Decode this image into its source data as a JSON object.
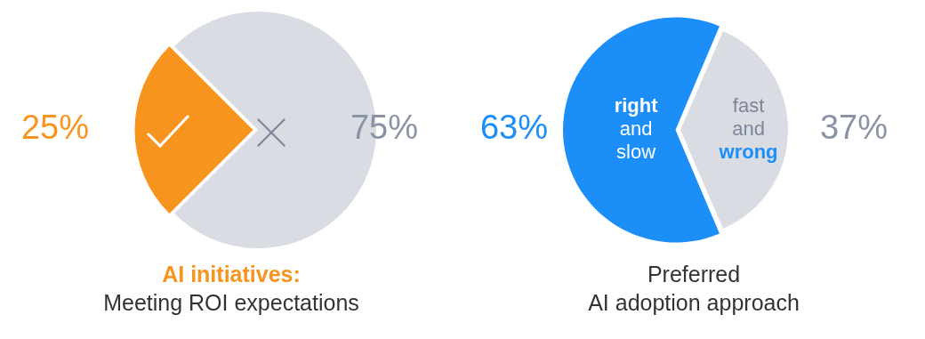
{
  "chart_data": [
    {
      "type": "pie",
      "categories": [
        null,
        null
      ],
      "values": [
        25,
        75
      ],
      "colors": [
        "#f7941d",
        "#d9dce3"
      ],
      "value_labels": [
        "25%",
        "75%"
      ],
      "legend": false,
      "title": "AI initiatives:",
      "subtitle": "Meeting ROI expectations"
    },
    {
      "type": "pie",
      "categories": [
        "right and slow",
        "fast and wrong"
      ],
      "values": [
        63,
        37
      ],
      "colors": [
        "#1b8ef8",
        "#d9dce3"
      ],
      "value_labels": [
        "63%",
        "37%"
      ],
      "legend": false,
      "title": "Preferred",
      "subtitle": "AI adoption approach"
    }
  ]
}
